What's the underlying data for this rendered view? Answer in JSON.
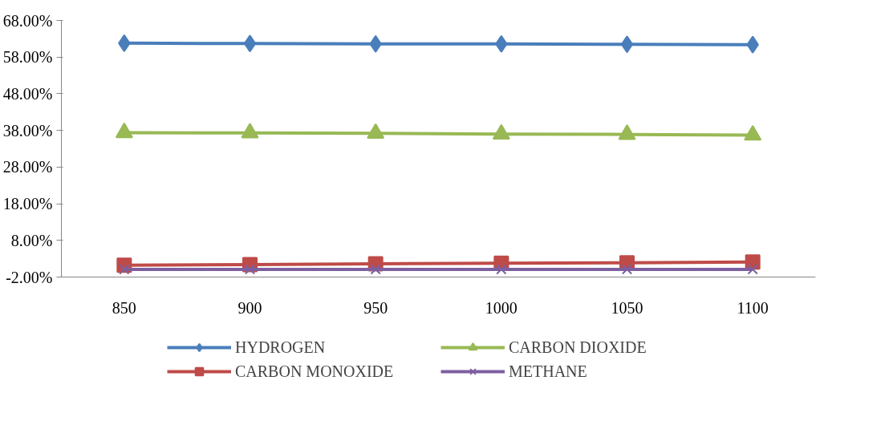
{
  "chart_data": {
    "type": "line",
    "categories": [
      "850",
      "900",
      "950",
      "1000",
      "1050",
      "1100"
    ],
    "series": [
      {
        "name": "HYDROGEN",
        "color": "#4a7ebb",
        "marker": "diamond",
        "values": [
          61.8,
          61.7,
          61.6,
          61.6,
          61.5,
          61.4
        ]
      },
      {
        "name": "CARBON MONOXIDE",
        "color": "#be4b48",
        "marker": "square",
        "values": [
          1.2,
          1.4,
          1.6,
          1.8,
          1.9,
          2.1
        ]
      },
      {
        "name": "CARBON DIOXIDE",
        "color": "#98b954",
        "marker": "triangle",
        "values": [
          37.4,
          37.3,
          37.2,
          37.0,
          36.9,
          36.7
        ]
      },
      {
        "name": "METHANE",
        "color": "#7d5fa0",
        "marker": "cross",
        "values": [
          0.1,
          0.1,
          0.1,
          0.1,
          0.1,
          0.1
        ]
      }
    ],
    "ylim": [
      -2,
      68
    ],
    "yticks": [
      {
        "value": -2,
        "label": "-2.00%"
      },
      {
        "value": 8,
        "label": "8.00%"
      },
      {
        "value": 18,
        "label": "18.00%"
      },
      {
        "value": 28,
        "label": "28.00%"
      },
      {
        "value": 38,
        "label": "38.00%"
      },
      {
        "value": 48,
        "label": "48.00%"
      },
      {
        "value": 58,
        "label": "58.00%"
      },
      {
        "value": 68,
        "label": "68.00%"
      }
    ],
    "grid": false,
    "legend": "bottom",
    "line_style": "solid"
  }
}
